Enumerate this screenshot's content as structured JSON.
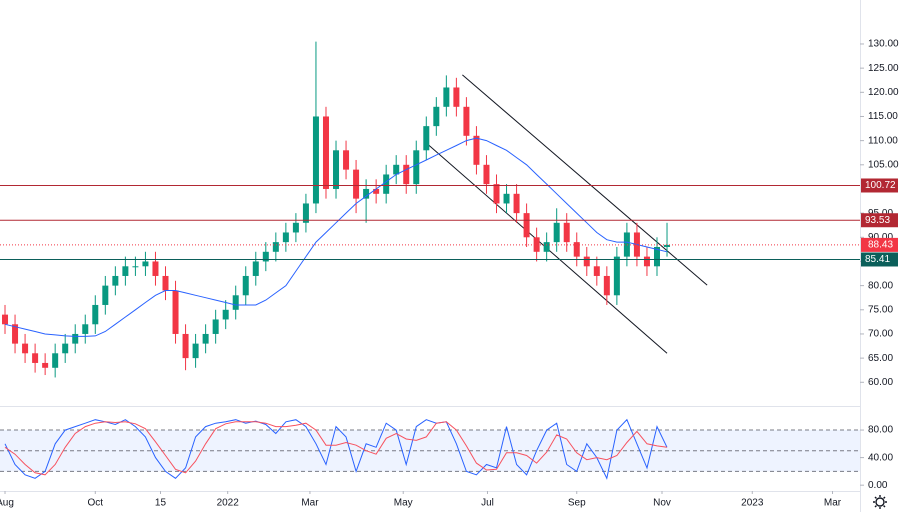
{
  "chart_data": [
    {
      "type": "candlestick",
      "x": [
        0,
        1,
        2,
        3,
        4,
        5,
        6,
        7,
        8,
        9,
        10,
        11,
        12,
        13,
        14,
        15,
        16,
        17,
        18,
        19,
        20,
        21,
        22,
        23,
        24,
        25,
        26,
        27,
        28,
        29,
        30,
        31,
        32,
        33,
        34,
        35,
        36,
        37,
        38,
        39,
        40,
        41,
        42,
        43,
        44,
        45,
        46,
        47,
        48,
        49,
        50,
        51,
        52,
        53,
        54,
        55,
        56,
        57,
        58,
        59,
        60,
        61,
        62,
        63,
        64,
        65,
        66
      ],
      "open": [
        74,
        72,
        68,
        66,
        64,
        63,
        66,
        68,
        70,
        72,
        76,
        80,
        82,
        84,
        84,
        85,
        82,
        79,
        70,
        65,
        68,
        70,
        73,
        75,
        78,
        82,
        85,
        87,
        89,
        91,
        93,
        97,
        115,
        100,
        108,
        104,
        98,
        100,
        99,
        103,
        105,
        101,
        108,
        113,
        117,
        121,
        117,
        111,
        105,
        101,
        97,
        99,
        95,
        90,
        87,
        89,
        93,
        89,
        86,
        84,
        82,
        78,
        86,
        91,
        86,
        84,
        88
      ],
      "high": [
        76,
        74,
        70,
        68,
        66,
        68,
        70,
        72,
        74,
        78,
        82,
        84,
        86,
        86,
        87,
        87,
        84,
        81,
        72,
        70,
        72,
        75,
        77,
        80,
        84,
        87,
        89,
        91,
        93,
        95,
        99,
        130.5,
        117,
        110,
        110,
        106,
        102,
        102,
        105,
        107,
        107,
        110,
        115,
        119,
        123.5,
        123,
        119,
        113,
        107,
        103,
        101,
        101,
        97,
        92,
        91,
        96,
        95,
        91,
        88,
        86,
        84,
        88,
        93,
        93,
        88,
        90,
        93
      ],
      "low": [
        70,
        66,
        64,
        62,
        61.5,
        61,
        64,
        66,
        68,
        70,
        74,
        78,
        80,
        82,
        82,
        80,
        77,
        68,
        62.5,
        63,
        66,
        68,
        71,
        73,
        76,
        80,
        83,
        85,
        87,
        89,
        91,
        95,
        98,
        98,
        102,
        95,
        93,
        97,
        97,
        101,
        99,
        99,
        106,
        111,
        115,
        115,
        109,
        103,
        99,
        95,
        95,
        93,
        88,
        85,
        85,
        87,
        87,
        84,
        82,
        80,
        76,
        76,
        84,
        84,
        82,
        82,
        86
      ],
      "close": [
        72,
        68,
        66,
        64,
        63,
        66,
        68,
        70,
        72,
        76,
        80,
        82,
        84,
        84,
        85,
        82,
        79,
        70,
        65,
        68,
        70,
        73,
        75,
        78,
        82,
        85,
        87,
        89,
        91,
        93,
        97,
        115,
        100,
        108,
        104,
        98,
        100,
        99,
        103,
        105,
        101,
        108,
        113,
        117,
        121,
        117,
        111,
        105,
        101,
        97,
        99,
        95,
        90,
        87,
        89,
        93,
        89,
        86,
        84,
        82,
        78,
        86,
        91,
        86,
        84,
        88,
        88.43
      ],
      "up_color": "#089981",
      "down_color": "#f23645",
      "ma": {
        "color": "#2962ff",
        "values": [
          72,
          71.5,
          71,
          70.5,
          70,
          69.8,
          69.6,
          69.5,
          69.5,
          69.6,
          70.5,
          72,
          73.5,
          75,
          76.5,
          78,
          79,
          79,
          78.5,
          78,
          77.5,
          77,
          76.5,
          76,
          76,
          76,
          77,
          78.5,
          80,
          83,
          86,
          89,
          91,
          93,
          95,
          97,
          98.5,
          100,
          101.5,
          103,
          104,
          105,
          106,
          107,
          108,
          109,
          110,
          110.5,
          110,
          109,
          108,
          106.5,
          105,
          103,
          101,
          99,
          97,
          95,
          93,
          91,
          89.5,
          89,
          89,
          88.5,
          88,
          87.5,
          87
        ]
      },
      "hlines": [
        {
          "value": 100.72,
          "color": "#b22833"
        },
        {
          "value": 93.53,
          "color": "#b22833"
        },
        {
          "value": 85.41,
          "color": "#0b5f5a"
        }
      ],
      "last_color": "#f23645",
      "trendlines": [
        {
          "x": [
            45.6,
            70
          ],
          "y": [
            123.6,
            80.1
          ]
        },
        {
          "x": [
            41.9,
            66
          ],
          "y": [
            109.7,
            66
          ]
        }
      ],
      "xlim": [
        -0.5,
        85.24
      ],
      "ylim": [
        55.3,
        139.1
      ],
      "xticks": [
        {
          "value": 0,
          "label": "Aug"
        },
        {
          "value": 9,
          "label": "Oct"
        },
        {
          "value": 15.5,
          "label": "15"
        },
        {
          "value": 22.2,
          "label": "2022"
        },
        {
          "value": 30.4,
          "label": "Mar"
        },
        {
          "value": 39.7,
          "label": "May"
        },
        {
          "value": 48.1,
          "label": "Jul"
        },
        {
          "value": 57,
          "label": "Sep"
        },
        {
          "value": 65.5,
          "label": "Nov"
        },
        {
          "value": 74.5,
          "label": "2023"
        },
        {
          "value": 82.5,
          "label": "Mar"
        }
      ],
      "yticks": [
        {
          "value": 60,
          "label": "60.00"
        },
        {
          "value": 65,
          "label": "65.00"
        },
        {
          "value": 70,
          "label": "70.00"
        },
        {
          "value": 75,
          "label": "75.00"
        },
        {
          "value": 80,
          "label": "80.00"
        },
        {
          "value": 85,
          "label": "85.00"
        },
        {
          "value": 90,
          "label": "90.00"
        },
        {
          "value": 95,
          "label": "95.00"
        },
        {
          "value": 105,
          "label": "105.00"
        },
        {
          "value": 110,
          "label": "110.00"
        },
        {
          "value": 115,
          "label": "115.00"
        },
        {
          "value": 120,
          "label": "120.00"
        },
        {
          "value": 125,
          "label": "125.00"
        },
        {
          "value": 130,
          "label": "130.00"
        }
      ]
    },
    {
      "type": "line",
      "series": [
        {
          "color": "#2962ff",
          "values": [
            60,
            30,
            15,
            10,
            20,
            60,
            80,
            85,
            90,
            95,
            92,
            88,
            95,
            85,
            70,
            40,
            20,
            10,
            25,
            70,
            85,
            90,
            92,
            95,
            90,
            93,
            88,
            75,
            92,
            95,
            85,
            60,
            30,
            85,
            70,
            20,
            60,
            55,
            90,
            80,
            30,
            85,
            95,
            90,
            92,
            60,
            20,
            15,
            30,
            25,
            85,
            30,
            15,
            50,
            80,
            90,
            30,
            20,
            60,
            40,
            10,
            80,
            95,
            60,
            25,
            85,
            55
          ]
        },
        {
          "color": "#f7525f",
          "values": [
            55,
            45,
            30,
            18,
            15,
            30,
            55,
            75,
            85,
            90,
            92,
            91,
            92,
            89,
            82,
            63,
            43,
            23,
            18,
            35,
            60,
            82,
            89,
            92,
            92,
            92,
            90,
            85,
            85,
            87,
            90,
            80,
            58,
            58,
            62,
            58,
            50,
            45,
            68,
            75,
            67,
            65,
            70,
            90,
            92,
            80,
            57,
            32,
            22,
            23,
            47,
            47,
            43,
            32,
            48,
            73,
            67,
            47,
            37,
            40,
            37,
            43,
            62,
            78,
            60,
            57,
            55
          ]
        }
      ],
      "band": [
        20,
        80
      ],
      "levels": [
        20,
        50,
        80
      ],
      "ylim": [
        -7,
        112
      ],
      "yticks": [
        {
          "value": 80,
          "label": "80.00"
        },
        {
          "value": 40,
          "label": "40.00"
        },
        {
          "value": 0,
          "label": "0.00"
        }
      ]
    }
  ]
}
